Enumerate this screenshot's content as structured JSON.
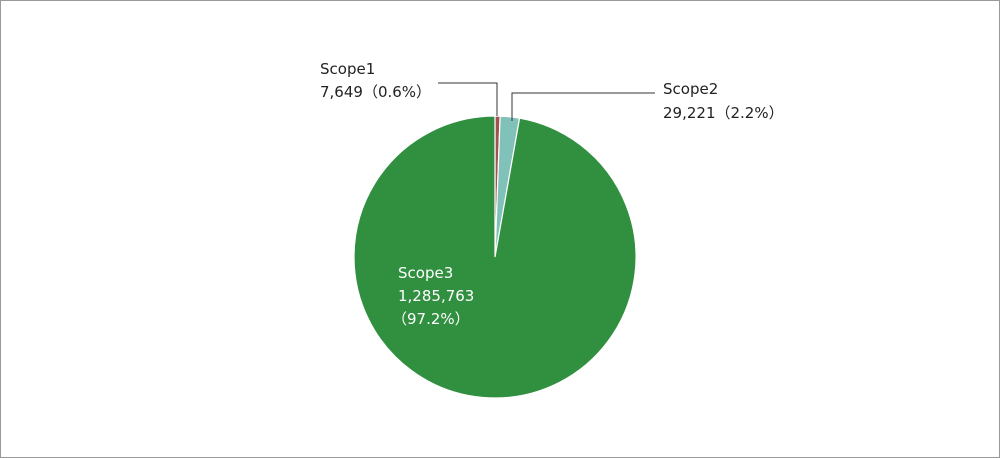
{
  "chart_data": {
    "type": "pie",
    "categories": [
      "Scope1",
      "Scope2",
      "Scope3"
    ],
    "values": [
      7649,
      29221,
      1285763
    ],
    "value_labels": [
      "7,649",
      "29,221",
      "1,285,763"
    ],
    "percent_labels": [
      "（0.6%）",
      "（2.2%）",
      "（97.2%）"
    ],
    "colors": [
      "#a0524f",
      "#80c2b9",
      "#318f40"
    ]
  }
}
